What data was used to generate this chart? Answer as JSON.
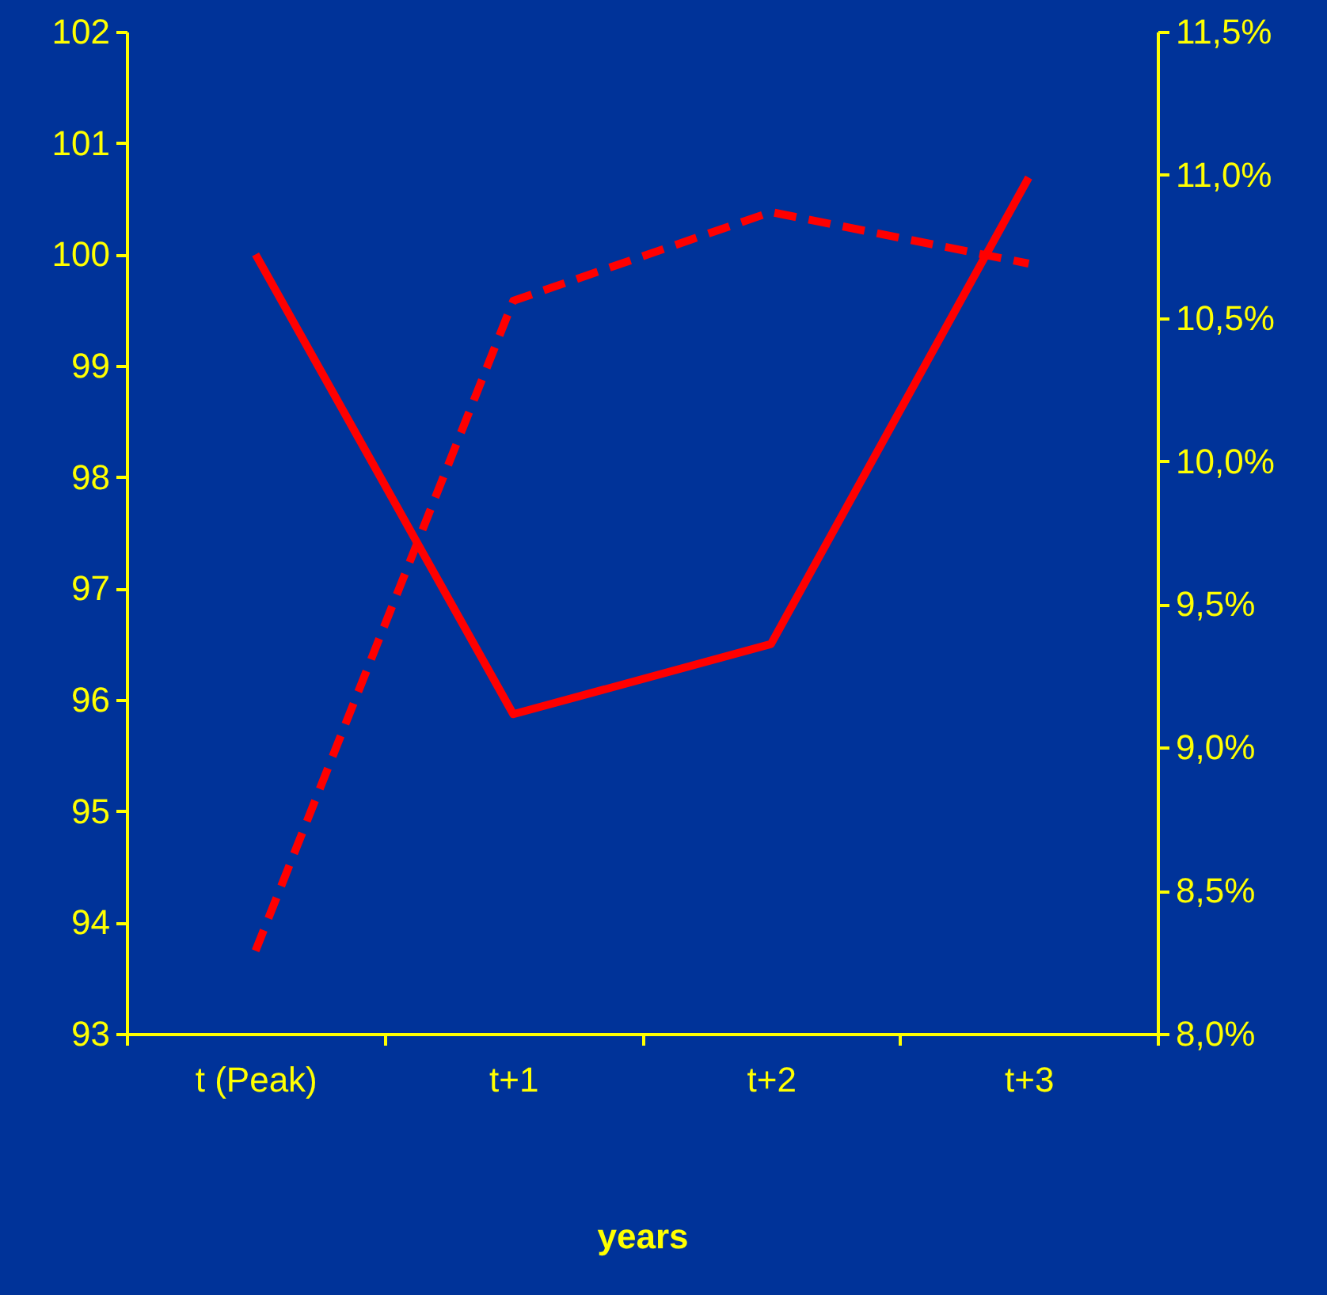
{
  "chart_data": {
    "type": "line",
    "xlabel": "years",
    "categories": [
      "t (Peak)",
      "t+1",
      "t+2",
      "t+3"
    ],
    "series": [
      {
        "color": "#ff0000",
        "line_style": "solid",
        "values": [
          100,
          95.87,
          96.5,
          100.69
        ]
      },
      {
        "color": "#ff0000",
        "line_style": "dashed",
        "axis": "y2",
        "values": [
          8.29,
          10.56,
          10.87,
          10.69
        ]
      }
    ],
    "ylim": [
      93,
      102
    ],
    "yticks": [
      93,
      94,
      95,
      96,
      97,
      98,
      99,
      100,
      101,
      102
    ],
    "y2lim": [
      8.0,
      11.5
    ],
    "y2ticks": [
      {
        "value": 8.0,
        "label": "8,0%"
      },
      {
        "value": 8.5,
        "label": "8,5%"
      },
      {
        "value": 9.0,
        "label": "9,0%"
      },
      {
        "value": 9.5,
        "label": "9,5%"
      },
      {
        "value": 10.0,
        "label": "10,0%"
      },
      {
        "value": 10.5,
        "label": "10,5%"
      },
      {
        "value": 11.0,
        "label": "11,0%"
      },
      {
        "value": 11.5,
        "label": "11,5%"
      }
    ],
    "grid": false,
    "marker": "none"
  }
}
